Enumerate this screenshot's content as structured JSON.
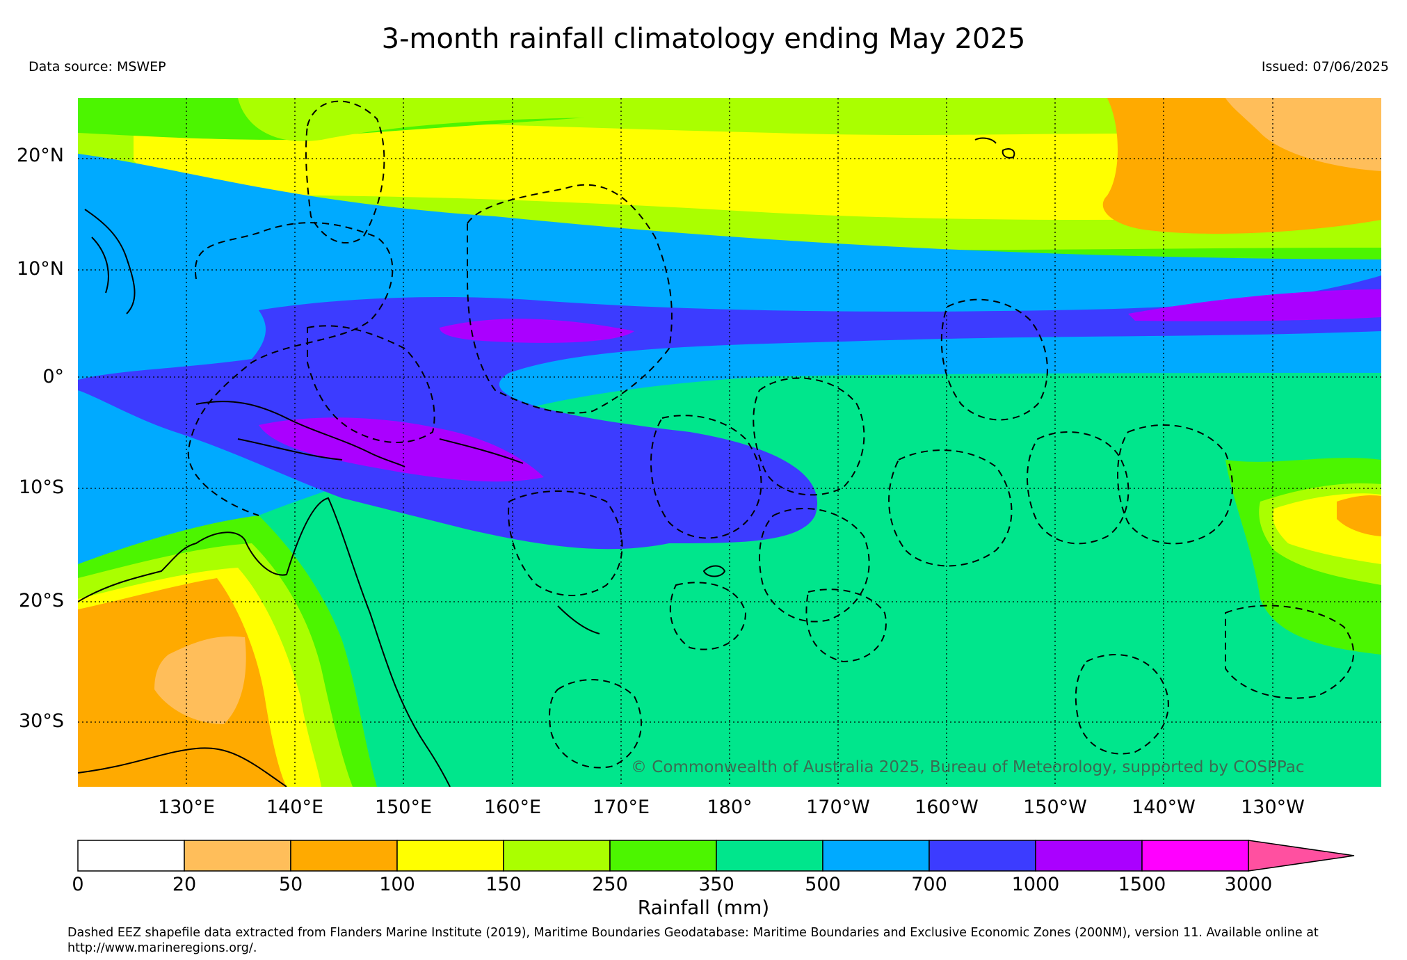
{
  "title": "3-month rainfall climatology ending May 2025",
  "source": "Data source: MSWEP",
  "issued": "Issued: 07/06/2025",
  "copyright": "© Commonwealth of Australia 2025, Bureau of Meteorology, supported by COSPPac",
  "lat_labels": [
    "20°N",
    "10°N",
    "0°",
    "10°S",
    "20°S",
    "30°S"
  ],
  "lon_labels": [
    "130°E",
    "140°E",
    "150°E",
    "160°E",
    "170°E",
    "180°",
    "170°W",
    "160°W",
    "150°W",
    "140°W",
    "130°W"
  ],
  "colorbar": {
    "units": "Rainfall (mm)",
    "ticks": [
      "0",
      "20",
      "50",
      "100",
      "150",
      "250",
      "350",
      "500",
      "700",
      "1000",
      "1500",
      "3000"
    ],
    "colors": [
      "#ffffff",
      "#ffbe5a",
      "#ffaa00",
      "#ffff00",
      "#aaff00",
      "#4cf500",
      "#00e68c",
      "#00aaff",
      "#3c3cff",
      "#aa00ff",
      "#ff00ff",
      "#ff50a0"
    ]
  },
  "footnote": "Dashed EEZ shapefile data extracted from Flanders Marine Institute (2019), Maritime Boundaries Geodatabase: Maritime Boundaries and Exclusive Economic Zones (200NM), version 11. Available online at http://www.marineregions.org/."
}
